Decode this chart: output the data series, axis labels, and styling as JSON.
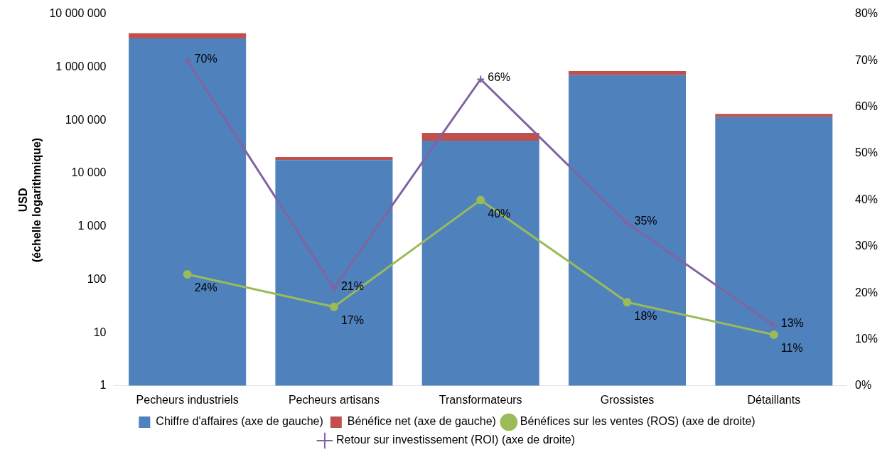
{
  "chart_data": {
    "type": "bar",
    "ylabel": "USD\n(échelle logarithmique)",
    "categories": [
      "Pecheurs industriels",
      "Pecheurs artisans",
      "Transformateurs",
      "Grossistes",
      "Détaillants"
    ],
    "stacked": true,
    "log": "y",
    "grid": false,
    "legend": "bottom",
    "ylim": [
      1,
      10000000
    ],
    "yticks": [
      1,
      10,
      100,
      {
        "value": 1000,
        "label": "1 000"
      },
      {
        "value": 10000,
        "label": "10 000"
      },
      {
        "value": 100000,
        "label": "100 000"
      },
      {
        "value": 1000000,
        "label": "1 000 000"
      },
      {
        "value": 10000000,
        "label": "10 000 000"
      }
    ],
    "y2lim": [
      0,
      80
    ],
    "y2ticks": [
      {
        "value": 0,
        "label": "0%"
      },
      {
        "value": 10,
        "label": "10%"
      },
      {
        "value": 20,
        "label": "20%"
      },
      {
        "value": 30,
        "label": "30%"
      },
      {
        "value": 40,
        "label": "40%"
      },
      {
        "value": 50,
        "label": "50%"
      },
      {
        "value": 60,
        "label": "60%"
      },
      {
        "value": 70,
        "label": "70%"
      },
      {
        "value": 80,
        "label": "80%"
      }
    ],
    "series": [
      {
        "name": "Chiffre d'affaires (axe de gauche)",
        "color": "#4f81bd",
        "values": [
          3500000,
          17800,
          41500,
          710000,
          115000
        ]
      },
      {
        "name": "Bénéfice net (axe de gauche)",
        "color": "#c0504d",
        "values": [
          900000,
          2600,
          16500,
          140000,
          17000
        ]
      },
      {
        "type": "line",
        "axis": "y2",
        "marker": "circle",
        "name": "Bénéfices sur les ventes (ROS) (axe de droite)",
        "color": "#9bbb59",
        "values": [
          24,
          17,
          40,
          18,
          11
        ],
        "value_labels": [
          "24%",
          "17%",
          "40%",
          "18%",
          "11%"
        ]
      },
      {
        "type": "line",
        "axis": "y2",
        "marker": "cross",
        "name": "Retour sur investissement (ROI) (axe de droite)",
        "color": "#8064a2",
        "values": [
          70,
          21,
          66,
          35,
          13
        ],
        "value_labels": [
          "70%",
          "21%",
          "66%",
          "35%",
          "13%"
        ]
      }
    ]
  }
}
